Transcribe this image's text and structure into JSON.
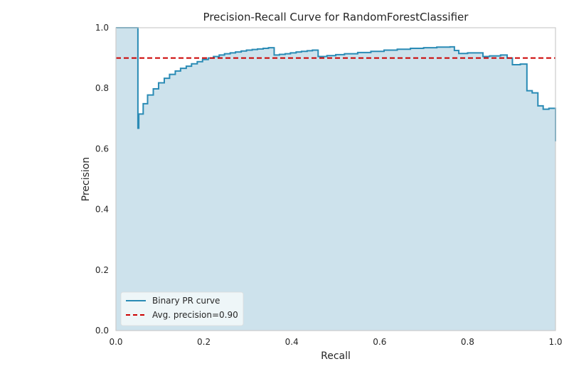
{
  "chart_data": {
    "type": "line",
    "title": "Precision-Recall Curve for RandomForestClassifier",
    "xlabel": "Recall",
    "ylabel": "Precision",
    "xlim": [
      0.0,
      1.0
    ],
    "ylim": [
      0.0,
      1.0
    ],
    "grid": false,
    "legend_position": "bottom-left",
    "xticks": [
      {
        "value": 0.0,
        "label": "0.0"
      },
      {
        "value": 0.2,
        "label": "0.2"
      },
      {
        "value": 0.4,
        "label": "0.4"
      },
      {
        "value": 0.6,
        "label": "0.6"
      },
      {
        "value": 0.8,
        "label": "0.8"
      },
      {
        "value": 1.0,
        "label": "1.0"
      }
    ],
    "yticks": [
      {
        "value": 0.0,
        "label": "0.0"
      },
      {
        "value": 0.2,
        "label": "0.2"
      },
      {
        "value": 0.4,
        "label": "0.4"
      },
      {
        "value": 0.6,
        "label": "0.6"
      },
      {
        "value": 0.8,
        "label": "0.8"
      },
      {
        "value": 1.0,
        "label": "1.0"
      }
    ],
    "series": [
      {
        "name": "Binary PR curve",
        "color": "#2a8bb5",
        "fill_color": "#cde2ec",
        "step": true,
        "recall": [
          0.0,
          0.05,
          0.05,
          0.052,
          0.062,
          0.072,
          0.085,
          0.097,
          0.11,
          0.122,
          0.135,
          0.147,
          0.16,
          0.172,
          0.185,
          0.197,
          0.21,
          0.222,
          0.235,
          0.247,
          0.26,
          0.272,
          0.285,
          0.297,
          0.31,
          0.322,
          0.335,
          0.347,
          0.36,
          0.36,
          0.372,
          0.385,
          0.397,
          0.41,
          0.422,
          0.435,
          0.447,
          0.46,
          0.46,
          0.48,
          0.5,
          0.52,
          0.55,
          0.58,
          0.61,
          0.64,
          0.67,
          0.7,
          0.73,
          0.76,
          0.77,
          0.78,
          0.8,
          0.82,
          0.835,
          0.85,
          0.875,
          0.89,
          0.902,
          0.92,
          0.935,
          0.935,
          0.947,
          0.96,
          0.972,
          0.985,
          1.0,
          1.0
        ],
        "precision": [
          1.0,
          1.0,
          0.668,
          0.715,
          0.749,
          0.778,
          0.798,
          0.818,
          0.833,
          0.846,
          0.857,
          0.866,
          0.873,
          0.881,
          0.888,
          0.895,
          0.9,
          0.905,
          0.91,
          0.914,
          0.917,
          0.92,
          0.923,
          0.926,
          0.928,
          0.93,
          0.932,
          0.934,
          0.936,
          0.91,
          0.912,
          0.914,
          0.917,
          0.92,
          0.922,
          0.924,
          0.926,
          0.928,
          0.905,
          0.908,
          0.911,
          0.914,
          0.918,
          0.922,
          0.926,
          0.929,
          0.932,
          0.934,
          0.936,
          0.937,
          0.925,
          0.915,
          0.917,
          0.917,
          0.905,
          0.907,
          0.91,
          0.9,
          0.878,
          0.88,
          0.872,
          0.792,
          0.785,
          0.742,
          0.731,
          0.734,
          0.734,
          0.625
        ]
      }
    ],
    "reference_lines": [
      {
        "name": "Avg. precision=0.90",
        "y": 0.9,
        "color": "#cc0000",
        "style": "dashed"
      }
    ],
    "legend": [
      {
        "label": "Binary PR curve",
        "color": "#2a8bb5",
        "style": "solid"
      },
      {
        "label": "Avg. precision=0.90",
        "color": "#cc0000",
        "style": "dashed"
      }
    ]
  }
}
